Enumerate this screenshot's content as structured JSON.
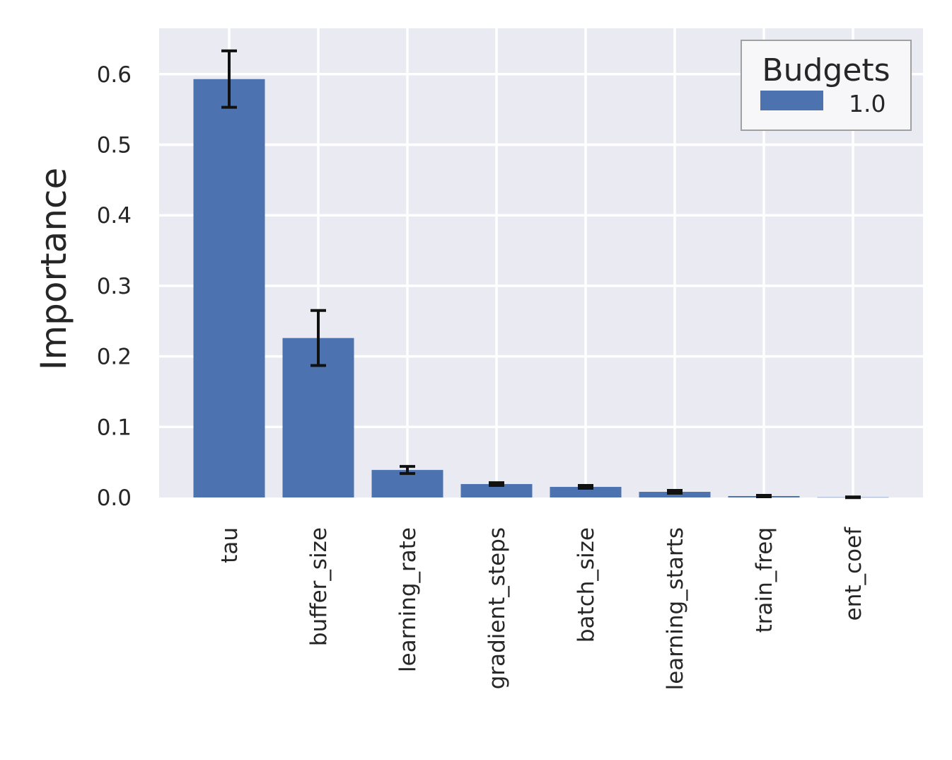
{
  "chart_data": {
    "type": "bar",
    "title": "",
    "xlabel": "",
    "ylabel": "Importance",
    "categories": [
      "tau",
      "buffer_size",
      "learning_rate",
      "gradient_steps",
      "batch_size",
      "learning_starts",
      "train_freq",
      "ent_coef"
    ],
    "series": [
      {
        "name": "1.0",
        "values": [
          0.593,
          0.226,
          0.039,
          0.019,
          0.015,
          0.008,
          0.002,
          0.0003
        ],
        "errors": [
          0.04,
          0.039,
          0.005,
          0.002,
          0.002,
          0.002,
          0.001,
          0.0005
        ],
        "color": "#4c72b0"
      }
    ],
    "legend_title": "Budgets",
    "legend_position": "top-right",
    "ylim": [
      0,
      0.665
    ],
    "yticks": [
      "0.0",
      "0.1",
      "0.2",
      "0.3",
      "0.4",
      "0.5",
      "0.6"
    ],
    "grid": true,
    "background": "#eaeaf2"
  }
}
